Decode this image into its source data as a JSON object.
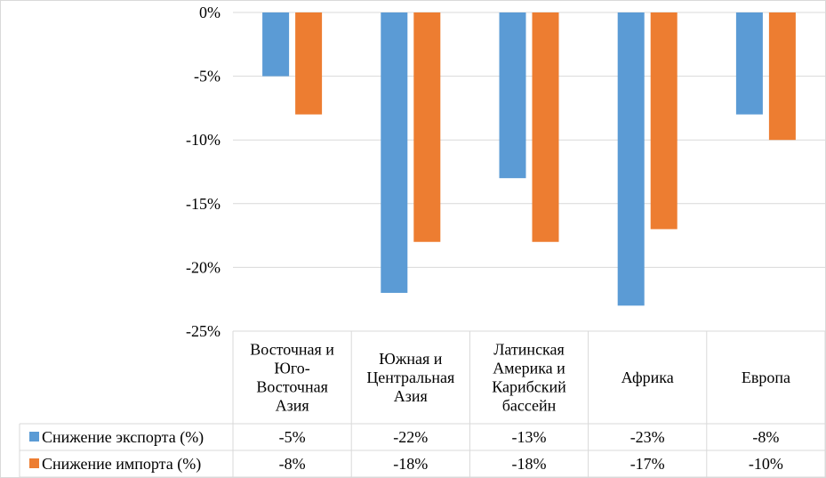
{
  "chart_data": {
    "type": "bar",
    "title": "",
    "xlabel": "",
    "ylabel": "",
    "ylim": [
      -25,
      0
    ],
    "yticks": [
      0,
      -5,
      -10,
      -15,
      -20,
      -25
    ],
    "ytick_labels": [
      "0%",
      "-5%",
      "-10%",
      "-15%",
      "-20%",
      "-25%"
    ],
    "grid": true,
    "legend": "data-table-left",
    "categories": [
      [
        "Восточная и",
        "Юго-",
        "Восточная",
        "Азия"
      ],
      [
        "Южная и",
        "Центральная",
        "Азия"
      ],
      [
        "Латинская",
        "Америка  и",
        "Карибский",
        "бассейн"
      ],
      [
        "Африка"
      ],
      [
        "Европа"
      ]
    ],
    "series": [
      {
        "name": "Снижение экспорта (%)",
        "color": "#5B9BD5",
        "values": [
          -5,
          -22,
          -13,
          -23,
          -8
        ],
        "labels": [
          "-5%",
          "-22%",
          "-13%",
          "-23%",
          "-8%"
        ]
      },
      {
        "name": "Снижение импорта (%)",
        "color": "#ED7D31",
        "values": [
          -8,
          -18,
          -18,
          -17,
          -10
        ],
        "labels": [
          "-8%",
          "-18%",
          "-18%",
          "-17%",
          "-10%"
        ]
      }
    ]
  }
}
